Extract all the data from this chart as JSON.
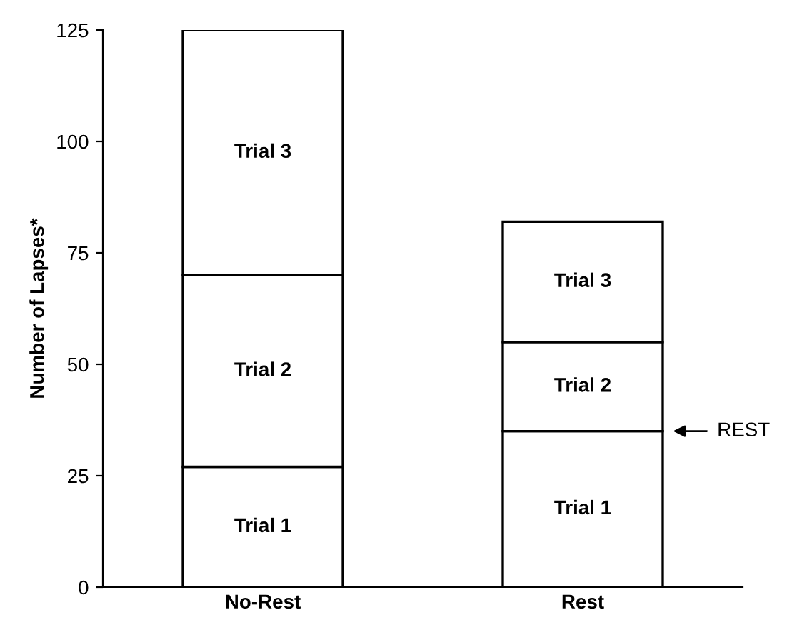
{
  "chart_data": {
    "type": "bar",
    "stacked": true,
    "ylabel": "Number of Lapses*",
    "categories": [
      "No-Rest",
      "Rest"
    ],
    "series": [
      {
        "name": "Trial 1",
        "color": "#ffffff",
        "values": [
          27,
          35
        ]
      },
      {
        "name": "Trial 2",
        "color": "#ffffff",
        "values": [
          43,
          20
        ]
      },
      {
        "name": "Trial 3",
        "color": "#ffffff",
        "values": [
          55,
          27
        ]
      }
    ],
    "ylim": [
      0,
      125
    ],
    "yticks": [
      0,
      25,
      50,
      75,
      100,
      125
    ],
    "grid": false,
    "legend": false,
    "annotations": [
      "REST"
    ]
  }
}
